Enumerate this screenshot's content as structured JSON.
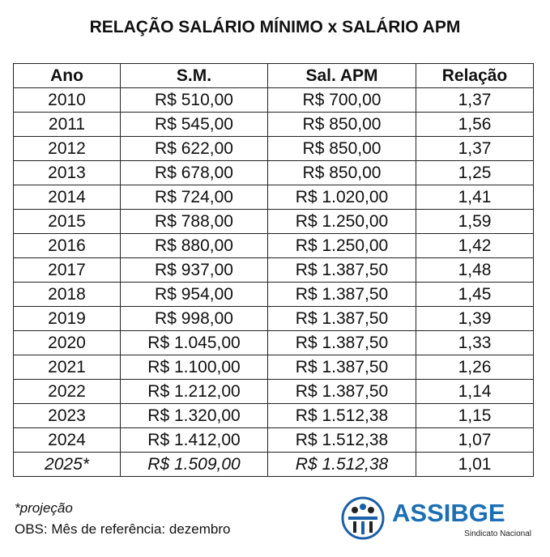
{
  "header": {
    "title": "RELAÇÃO SALÁRIO MÍNIMO x SALÁRIO APM"
  },
  "table": {
    "columns": [
      "Ano",
      "S.M.",
      "Sal. APM",
      "Relação"
    ],
    "rows": [
      [
        "2010",
        "R$ 510,00",
        "R$ 700,00",
        "1,37"
      ],
      [
        "2011",
        "R$ 545,00",
        "R$ 850,00",
        "1,56"
      ],
      [
        "2012",
        "R$ 622,00",
        "R$ 850,00",
        "1,37"
      ],
      [
        "2013",
        "R$ 678,00",
        "R$ 850,00",
        "1,25"
      ],
      [
        "2014",
        "R$ 724,00",
        "R$ 1.020,00",
        "1,41"
      ],
      [
        "2015",
        "R$ 788,00",
        "R$ 1.250,00",
        "1,59"
      ],
      [
        "2016",
        "R$ 880,00",
        "R$ 1.250,00",
        "1,42"
      ],
      [
        "2017",
        "R$ 937,00",
        "R$ 1.387,50",
        "1,48"
      ],
      [
        "2018",
        "R$ 954,00",
        "R$ 1.387,50",
        "1,45"
      ],
      [
        "2019",
        "R$ 998,00",
        "R$ 1.387,50",
        "1,39"
      ],
      [
        "2020",
        "R$ 1.045,00",
        "R$ 1.387,50",
        "1,33"
      ],
      [
        "2021",
        "R$ 1.100,00",
        "R$ 1.387,50",
        "1,26"
      ],
      [
        "2022",
        "R$ 1.212,00",
        "R$ 1.387,50",
        "1,14"
      ],
      [
        "2023",
        "R$ 1.320,00",
        "R$ 1.512,38",
        "1,15"
      ],
      [
        "2024",
        "R$ 1.412,00",
        "R$ 1.512,38",
        "1,07"
      ],
      [
        "2025*",
        "R$ 1.509,00",
        "R$ 1.512,38",
        "1,01"
      ]
    ]
  },
  "footer": {
    "note": "*projeção",
    "obs": "OBS: Mês de referência: dezembro"
  },
  "logo": {
    "name": "ASSIBGE",
    "subtitle": "Sindicato Nacional"
  }
}
